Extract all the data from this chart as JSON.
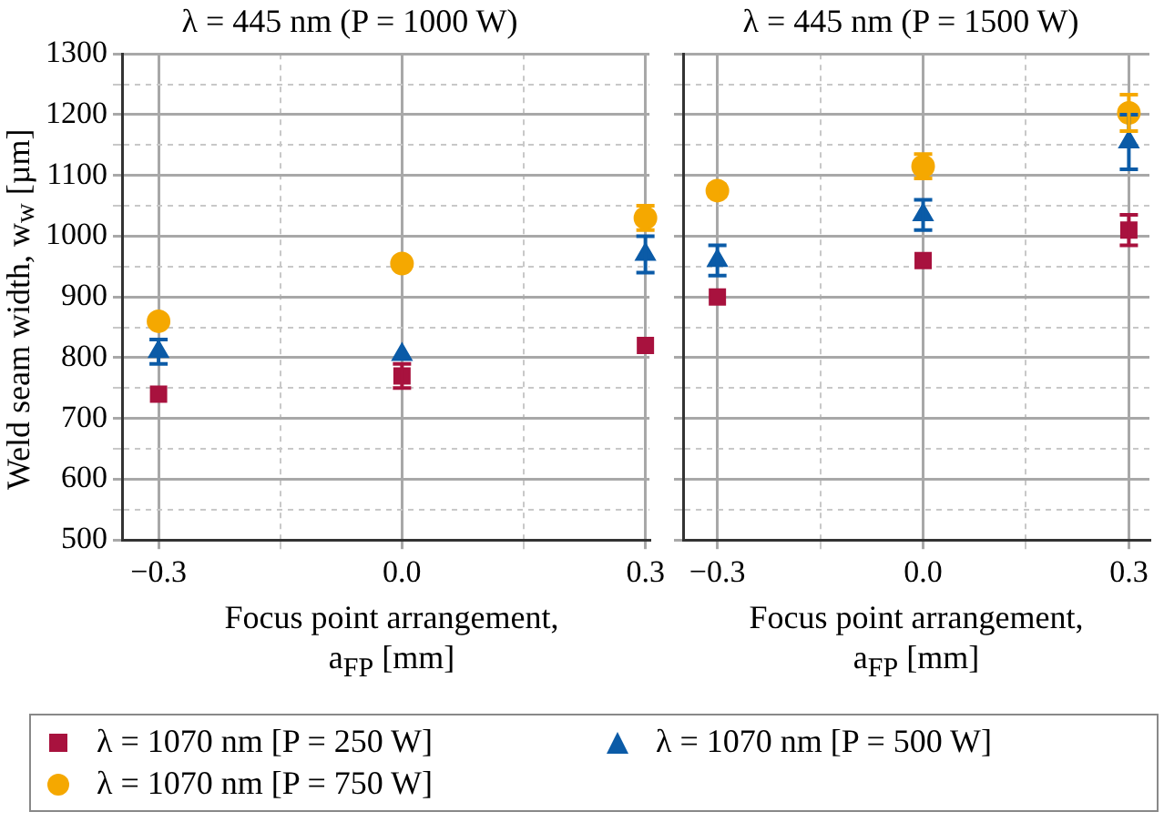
{
  "chart_data": [
    {
      "type": "scatter",
      "title": "λ = 445 nm (P = 1000 W)",
      "xlabel": "Focus point arrangement,\na$_{FP}$ [mm]",
      "ylabel": "Weld seam width, w$_{w}$ [µm]",
      "xlim": [
        -0.345,
        0.305
      ],
      "ylim": [
        500,
        1300
      ],
      "xticks": [
        {
          "value": -0.3,
          "label": "−0.3"
        },
        {
          "value": -0.15,
          "label": null
        },
        {
          "value": 0,
          "label": "0.0"
        },
        {
          "value": 0.15,
          "label": null
        },
        {
          "value": 0.3,
          "label": "0.3"
        }
      ],
      "yticks": [
        500,
        {
          "value": 550,
          "label": null
        },
        600,
        {
          "value": 650,
          "label": null
        },
        700,
        {
          "value": 750,
          "label": null
        },
        800,
        {
          "value": 850,
          "label": null
        },
        900,
        {
          "value": 950,
          "label": null
        },
        1000,
        {
          "value": 1050,
          "label": null
        },
        1100,
        {
          "value": 1150,
          "label": null
        },
        1200,
        {
          "value": 1250,
          "label": null
        },
        1300
      ],
      "grid": true,
      "legend": "bottom",
      "x": [
        -0.3,
        0,
        0.3
      ],
      "series": [
        {
          "name": "λ = 1070 nm [P = 250 W]",
          "color": "#a8123e",
          "marker": "square",
          "values": [
            740,
            770,
            820
          ],
          "errors": [
            null,
            20,
            null
          ]
        },
        {
          "name": "λ = 1070 nm [P = 500 W]",
          "color": "#0b5ba7",
          "marker": "triangle",
          "values": [
            810,
            805,
            970
          ],
          "errors": [
            20,
            null,
            30
          ]
        },
        {
          "name": "λ = 1070 nm [P = 750 W]",
          "color": "#f5a800",
          "marker": "circle",
          "values": [
            860,
            955,
            1030
          ],
          "errors": [
            null,
            null,
            20
          ]
        }
      ]
    },
    {
      "type": "scatter",
      "title": "λ = 445 nm (P = 1500 W)",
      "xlabel": "Focus point arrangement,\na$_{FP}$ [mm]",
      "xlim": [
        -0.35,
        0.33
      ],
      "ylim": [
        500,
        1300
      ],
      "tick_labels": "x",
      "xticks": [
        {
          "value": -0.3,
          "label": "−0.3"
        },
        {
          "value": -0.15,
          "label": null
        },
        {
          "value": 0,
          "label": "0.0"
        },
        {
          "value": 0.15,
          "label": null
        },
        {
          "value": 0.3,
          "label": "0.3"
        }
      ],
      "yticks": [
        500,
        {
          "value": 550,
          "label": null
        },
        600,
        {
          "value": 650,
          "label": null
        },
        700,
        {
          "value": 750,
          "label": null
        },
        800,
        {
          "value": 850,
          "label": null
        },
        900,
        {
          "value": 950,
          "label": null
        },
        1000,
        {
          "value": 1050,
          "label": null
        },
        1100,
        {
          "value": 1150,
          "label": null
        },
        1200,
        {
          "value": 1250,
          "label": null
        },
        1300
      ],
      "grid": true,
      "x": [
        -0.3,
        0,
        0.3
      ],
      "series": [
        {
          "color": "#a8123e",
          "marker": "square",
          "values": [
            900,
            960,
            1010
          ],
          "errors": [
            null,
            null,
            25
          ]
        },
        {
          "color": "#0b5ba7",
          "marker": "triangle",
          "values": [
            960,
            1035,
            1155
          ],
          "errors": [
            25,
            25,
            45
          ]
        },
        {
          "color": "#f5a800",
          "marker": "circle",
          "values": [
            1075,
            1115,
            1203
          ],
          "errors": [
            10,
            20,
            30
          ]
        }
      ]
    }
  ]
}
